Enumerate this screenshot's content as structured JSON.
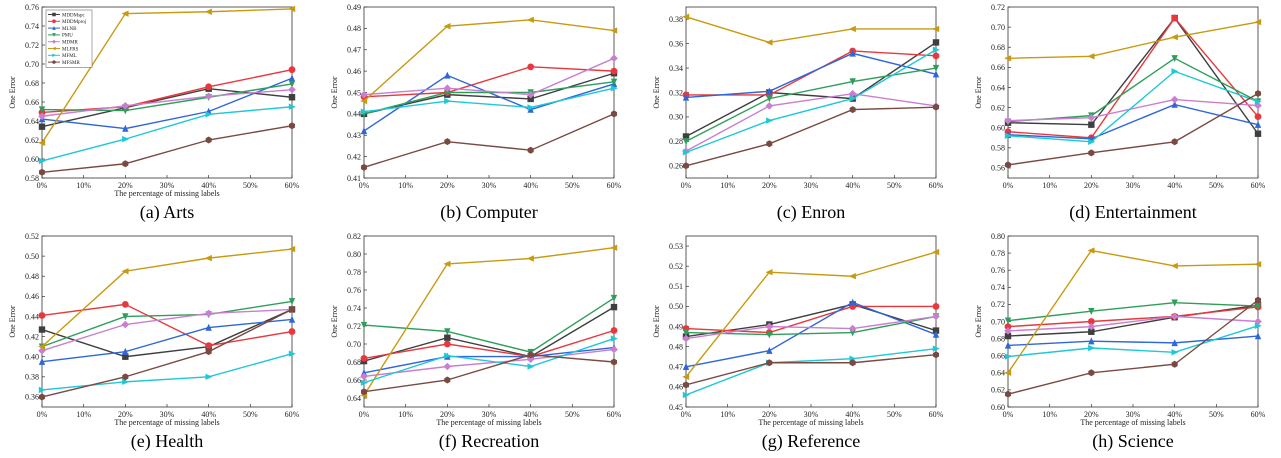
{
  "series_colors": [
    "#3f3f3f",
    "#e8383d",
    "#2f66d9",
    "#2e9e5b",
    "#c97ed0",
    "#c89a10",
    "#1ec8d6",
    "#7a4a42"
  ],
  "markers": [
    "square",
    "circle",
    "triangle-up",
    "triangle-down",
    "diamond",
    "triangle-left",
    "triangle-right",
    "hexagon"
  ],
  "legend_names": [
    "MDDMspc",
    "MDDMproj",
    "MLNB",
    "PMU",
    "MDMR",
    "MLFRS",
    "MFML",
    "MFSMR"
  ],
  "chart_data": [
    {
      "type": "line",
      "caption": "(a) Arts",
      "xlabel": "The percentage of missing labels",
      "ylabel": "One Error",
      "x": [
        0,
        20,
        40,
        60
      ],
      "xlim": [
        0,
        60
      ],
      "xticks": [
        "0%",
        "10%",
        "20%",
        "30%",
        "40%",
        "50%",
        "60%"
      ],
      "ylim": [
        0.58,
        0.76
      ],
      "yticks": [
        "0.58",
        "0.60",
        "0.62",
        "0.64",
        "0.66",
        "0.68",
        "0.70",
        "0.72",
        "0.74",
        "0.76"
      ],
      "legend": "top-left",
      "series": [
        {
          "name": "MDDMspc",
          "values": [
            0.634,
            0.654,
            0.674,
            0.665
          ]
        },
        {
          "name": "MDDMproj",
          "values": [
            0.649,
            0.655,
            0.676,
            0.694
          ]
        },
        {
          "name": "MLNB",
          "values": [
            0.642,
            0.632,
            0.65,
            0.685
          ]
        },
        {
          "name": "PMU",
          "values": [
            0.652,
            0.651,
            0.665,
            0.679
          ]
        },
        {
          "name": "MDMR",
          "values": [
            0.645,
            0.656,
            0.666,
            0.673
          ]
        },
        {
          "name": "MLFRS",
          "values": [
            0.617,
            0.753,
            0.755,
            0.758
          ]
        },
        {
          "name": "MFML",
          "values": [
            0.598,
            0.621,
            0.647,
            0.655
          ]
        },
        {
          "name": "MFSMR",
          "values": [
            0.586,
            0.595,
            0.62,
            0.635
          ]
        }
      ]
    },
    {
      "type": "line",
      "caption": "(b) Computer",
      "xlabel": "",
      "ylabel": "One Error",
      "x": [
        0,
        20,
        40,
        60
      ],
      "xlim": [
        0,
        60
      ],
      "xticks": [
        "0%",
        "10%",
        "20%",
        "30%",
        "40%",
        "50%",
        "60%"
      ],
      "ylim": [
        0.41,
        0.49
      ],
      "yticks": [
        "0.41",
        "0.42",
        "0.43",
        "0.44",
        "0.45",
        "0.46",
        "0.47",
        "0.48",
        "0.49"
      ],
      "series": [
        {
          "values": [
            0.44,
            0.449,
            0.447,
            0.459
          ]
        },
        {
          "values": [
            0.448,
            0.45,
            0.462,
            0.46
          ]
        },
        {
          "values": [
            0.432,
            0.458,
            0.442,
            0.454
          ]
        },
        {
          "values": [
            0.44,
            0.45,
            0.45,
            0.455
          ]
        },
        {
          "values": [
            0.449,
            0.452,
            0.449,
            0.466
          ]
        },
        {
          "values": [
            0.446,
            0.481,
            0.484,
            0.479
          ]
        },
        {
          "values": [
            0.441,
            0.446,
            0.443,
            0.452
          ]
        },
        {
          "values": [
            0.415,
            0.427,
            0.423,
            0.44
          ]
        }
      ]
    },
    {
      "type": "line",
      "caption": "(c) Enron",
      "xlabel": "",
      "ylabel": "One Error",
      "x": [
        0,
        20,
        40,
        60
      ],
      "xlim": [
        0,
        60
      ],
      "xticks": [
        "0%",
        "10%",
        "20%",
        "30%",
        "40%",
        "50%",
        "60%"
      ],
      "ylim": [
        0.25,
        0.39
      ],
      "yticks": [
        "0.26",
        "0.28",
        "0.30",
        "0.32",
        "0.34",
        "0.36",
        "0.38"
      ],
      "series": [
        {
          "values": [
            0.284,
            0.32,
            0.315,
            0.361
          ]
        },
        {
          "values": [
            0.318,
            0.318,
            0.354,
            0.35
          ]
        },
        {
          "values": [
            0.316,
            0.321,
            0.352,
            0.335
          ]
        },
        {
          "values": [
            0.28,
            0.315,
            0.329,
            0.34
          ]
        },
        {
          "values": [
            0.272,
            0.309,
            0.319,
            0.309
          ]
        },
        {
          "values": [
            0.382,
            0.361,
            0.372,
            0.372
          ]
        },
        {
          "values": [
            0.271,
            0.297,
            0.315,
            0.355
          ]
        },
        {
          "values": [
            0.26,
            0.278,
            0.306,
            0.308
          ]
        }
      ]
    },
    {
      "type": "line",
      "caption": "(d) Entertainment",
      "xlabel": "",
      "ylabel": "One Error",
      "x": [
        0,
        20,
        40,
        60
      ],
      "xlim": [
        0,
        60
      ],
      "xticks": [
        "0%",
        "10%",
        "20%",
        "30%",
        "40%",
        "50%",
        "60%"
      ],
      "ylim": [
        0.55,
        0.72
      ],
      "yticks": [
        "0.56",
        "0.58",
        "0.60",
        "0.62",
        "0.64",
        "0.66",
        "0.68",
        "0.70",
        "0.72"
      ],
      "series": [
        {
          "values": [
            0.605,
            0.603,
            0.709,
            0.594
          ]
        },
        {
          "values": [
            0.596,
            0.59,
            0.709,
            0.611
          ]
        },
        {
          "values": [
            0.593,
            0.589,
            0.623,
            0.603
          ]
        },
        {
          "values": [
            0.606,
            0.612,
            0.669,
            0.626
          ]
        },
        {
          "values": [
            0.607,
            0.61,
            0.628,
            0.622
          ]
        },
        {
          "values": [
            0.669,
            0.671,
            0.69,
            0.705
          ]
        },
        {
          "values": [
            0.592,
            0.586,
            0.656,
            0.626
          ]
        },
        {
          "values": [
            0.563,
            0.575,
            0.586,
            0.634
          ]
        }
      ]
    },
    {
      "type": "line",
      "caption": "(e) Health",
      "xlabel": "The percentage of missing labels",
      "ylabel": "One Error",
      "x": [
        0,
        20,
        40,
        60
      ],
      "xlim": [
        0,
        60
      ],
      "xticks": [
        "0%",
        "10%",
        "20%",
        "30%",
        "40%",
        "50%",
        "60%"
      ],
      "ylim": [
        0.35,
        0.52
      ],
      "yticks": [
        "0.36",
        "0.38",
        "0.40",
        "0.42",
        "0.44",
        "0.46",
        "0.48",
        "0.50",
        "0.52"
      ],
      "series": [
        {
          "values": [
            0.427,
            0.4,
            0.41,
            0.447
          ]
        },
        {
          "values": [
            0.441,
            0.452,
            0.411,
            0.425
          ]
        },
        {
          "values": [
            0.395,
            0.405,
            0.429,
            0.437
          ]
        },
        {
          "values": [
            0.41,
            0.44,
            0.442,
            0.455
          ]
        },
        {
          "values": [
            0.406,
            0.432,
            0.443,
            0.447
          ]
        },
        {
          "values": [
            0.41,
            0.485,
            0.498,
            0.507
          ]
        },
        {
          "values": [
            0.367,
            0.375,
            0.38,
            0.403
          ]
        },
        {
          "values": [
            0.36,
            0.38,
            0.405,
            0.447
          ]
        }
      ]
    },
    {
      "type": "line",
      "caption": "(f) Recreation",
      "xlabel": "The percentage of missing labels",
      "ylabel": "One Error",
      "x": [
        0,
        20,
        40,
        60
      ],
      "xlim": [
        0,
        60
      ],
      "xticks": [
        "0%",
        "10%",
        "20%",
        "30%",
        "40%",
        "50%",
        "60%"
      ],
      "ylim": [
        0.63,
        0.82
      ],
      "yticks": [
        "0.64",
        "0.66",
        "0.68",
        "0.70",
        "0.72",
        "0.74",
        "0.76",
        "0.78",
        "0.80",
        "0.82"
      ],
      "series": [
        {
          "values": [
            0.681,
            0.707,
            0.686,
            0.741
          ]
        },
        {
          "values": [
            0.684,
            0.7,
            0.686,
            0.715
          ]
        },
        {
          "values": [
            0.668,
            0.686,
            0.686,
            0.696
          ]
        },
        {
          "values": [
            0.721,
            0.714,
            0.691,
            0.751
          ]
        },
        {
          "values": [
            0.664,
            0.675,
            0.683,
            0.694
          ]
        },
        {
          "values": [
            0.643,
            0.789,
            0.795,
            0.807
          ]
        },
        {
          "values": [
            0.657,
            0.687,
            0.675,
            0.706
          ]
        },
        {
          "values": [
            0.647,
            0.66,
            0.688,
            0.68
          ]
        }
      ]
    },
    {
      "type": "line",
      "caption": "(g) Reference",
      "xlabel": "The percentage of missing labels",
      "ylabel": "One Error",
      "x": [
        0,
        20,
        40,
        60
      ],
      "xlim": [
        0,
        60
      ],
      "xticks": [
        "0%",
        "10%",
        "20%",
        "30%",
        "40%",
        "50%",
        "60%"
      ],
      "ylim": [
        0.45,
        0.535
      ],
      "yticks": [
        "0.45",
        "0.46",
        "0.47",
        "0.48",
        "0.49",
        "0.50",
        "0.51",
        "0.52",
        "0.53"
      ],
      "series": [
        {
          "values": [
            0.485,
            0.491,
            0.501,
            0.488
          ]
        },
        {
          "values": [
            0.489,
            0.487,
            0.5,
            0.5
          ]
        },
        {
          "values": [
            0.47,
            0.478,
            0.502,
            0.486
          ]
        },
        {
          "values": [
            0.487,
            0.486,
            0.487,
            0.495
          ]
        },
        {
          "values": [
            0.484,
            0.49,
            0.489,
            0.495
          ]
        },
        {
          "values": [
            0.465,
            0.517,
            0.515,
            0.527
          ]
        },
        {
          "values": [
            0.456,
            0.472,
            0.474,
            0.479
          ]
        },
        {
          "values": [
            0.461,
            0.472,
            0.472,
            0.476
          ]
        }
      ]
    },
    {
      "type": "line",
      "caption": "(h) Science",
      "xlabel": "The percentage of missing labels",
      "ylabel": "One Error",
      "x": [
        0,
        20,
        40,
        60
      ],
      "xlim": [
        0,
        60
      ],
      "xticks": [
        "0%",
        "10%",
        "20%",
        "30%",
        "40%",
        "50%",
        "60%"
      ],
      "ylim": [
        0.6,
        0.8
      ],
      "yticks": [
        "0.60",
        "0.62",
        "0.64",
        "0.66",
        "0.68",
        "0.70",
        "0.72",
        "0.74",
        "0.76",
        "0.78",
        "0.80"
      ],
      "series": [
        {
          "values": [
            0.683,
            0.688,
            0.705,
            0.719
          ]
        },
        {
          "values": [
            0.694,
            0.7,
            0.706,
            0.717
          ]
        },
        {
          "values": [
            0.672,
            0.677,
            0.675,
            0.683
          ]
        },
        {
          "values": [
            0.701,
            0.712,
            0.722,
            0.718
          ]
        },
        {
          "values": [
            0.689,
            0.694,
            0.706,
            0.7
          ]
        },
        {
          "values": [
            0.64,
            0.783,
            0.765,
            0.767
          ]
        },
        {
          "values": [
            0.659,
            0.669,
            0.664,
            0.695
          ]
        },
        {
          "values": [
            0.615,
            0.64,
            0.65,
            0.725
          ]
        }
      ]
    }
  ]
}
